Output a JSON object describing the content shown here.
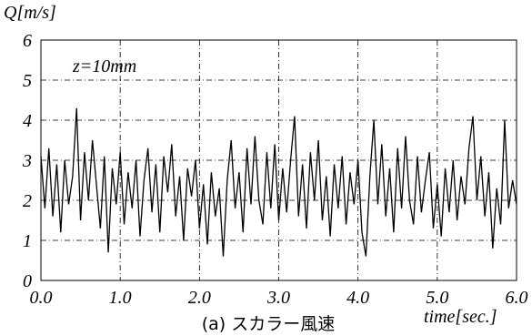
{
  "chart_data": {
    "type": "line",
    "y_label": "Q[m/s]",
    "x_label": "time[sec.]",
    "annotation": "z=10mm",
    "caption": "(a) スカラー風速",
    "color": "#000000",
    "grid": true,
    "xlim": [
      0,
      6
    ],
    "ylim": [
      0,
      6
    ],
    "xticks": [
      {
        "value": 0,
        "label": "0.0"
      },
      {
        "value": 1,
        "label": "1.0"
      },
      {
        "value": 2,
        "label": "2.0"
      },
      {
        "value": 3,
        "label": "3.0"
      },
      {
        "value": 4,
        "label": "4.0"
      },
      {
        "value": 5,
        "label": "5.0"
      },
      {
        "value": 6,
        "label": "6.0"
      }
    ],
    "yticks": [
      0,
      1,
      2,
      3,
      4,
      5,
      6
    ],
    "x": [
      0,
      0.05,
      0.1,
      0.15,
      0.2,
      0.25,
      0.3,
      0.35,
      0.4,
      0.45,
      0.5,
      0.55,
      0.6,
      0.65,
      0.7,
      0.75,
      0.8,
      0.85,
      0.9,
      0.95,
      1,
      1.05,
      1.1,
      1.15,
      1.2,
      1.25,
      1.3,
      1.35,
      1.4,
      1.45,
      1.5,
      1.55,
      1.6,
      1.65,
      1.7,
      1.75,
      1.8,
      1.85,
      1.9,
      1.95,
      2,
      2.05,
      2.1,
      2.15,
      2.2,
      2.25,
      2.3,
      2.35,
      2.4,
      2.45,
      2.5,
      2.55,
      2.6,
      2.65,
      2.7,
      2.75,
      2.8,
      2.85,
      2.9,
      2.95,
      3,
      3.05,
      3.1,
      3.15,
      3.2,
      3.25,
      3.3,
      3.35,
      3.4,
      3.45,
      3.5,
      3.55,
      3.6,
      3.65,
      3.7,
      3.75,
      3.8,
      3.85,
      3.9,
      3.95,
      4,
      4.05,
      4.1,
      4.15,
      4.2,
      4.25,
      4.3,
      4.35,
      4.4,
      4.45,
      4.5,
      4.55,
      4.6,
      4.65,
      4.7,
      4.75,
      4.8,
      4.85,
      4.9,
      4.95,
      5,
      5.05,
      5.1,
      5.15,
      5.2,
      5.25,
      5.3,
      5.35,
      5.4,
      5.45,
      5.5,
      5.55,
      5.6,
      5.65,
      5.7,
      5.75,
      5.8,
      5.85,
      5.9,
      5.95,
      6
    ],
    "values": [
      3.1,
      1.8,
      3.3,
      1.6,
      2.9,
      1.2,
      3.0,
      1.9,
      2.6,
      4.3,
      1.5,
      3.2,
      2.0,
      3.5,
      2.4,
      1.3,
      3.1,
      0.7,
      2.8,
      1.9,
      3.2,
      1.4,
      2.7,
      1.8,
      3.0,
      1.1,
      2.5,
      3.3,
      1.7,
      2.9,
      1.2,
      3.1,
      2.2,
      3.4,
      1.6,
      2.6,
      1.0,
      2.8,
      2.1,
      3.0,
      1.3,
      2.4,
      0.9,
      2.7,
      1.6,
      2.3,
      0.6,
      2.5,
      3.5,
      1.8,
      2.7,
      1.2,
      3.3,
      1.9,
      3.6,
      2.0,
      1.4,
      3.2,
      1.8,
      3.4,
      1.5,
      2.8,
      1.7,
      3.0,
      4.1,
      1.6,
      2.9,
      1.3,
      3.2,
      2.0,
      3.5,
      1.5,
      2.6,
      1.1,
      2.9,
      1.8,
      3.1,
      1.4,
      2.7,
      1.9,
      3.0,
      1.2,
      0.6,
      2.6,
      4.0,
      1.9,
      3.4,
      1.6,
      2.8,
      1.2,
      3.3,
      1.8,
      3.6,
      2.0,
      1.4,
      3.1,
      1.7,
      2.5,
      3.2,
      1.3,
      2.4,
      1.1,
      2.8,
      1.7,
      3.0,
      1.5,
      2.6,
      1.9,
      3.3,
      4.1,
      2.0,
      3.1,
      1.6,
      2.7,
      0.8,
      2.3,
      1.4,
      4.0,
      1.8,
      2.5,
      1.9
    ]
  }
}
